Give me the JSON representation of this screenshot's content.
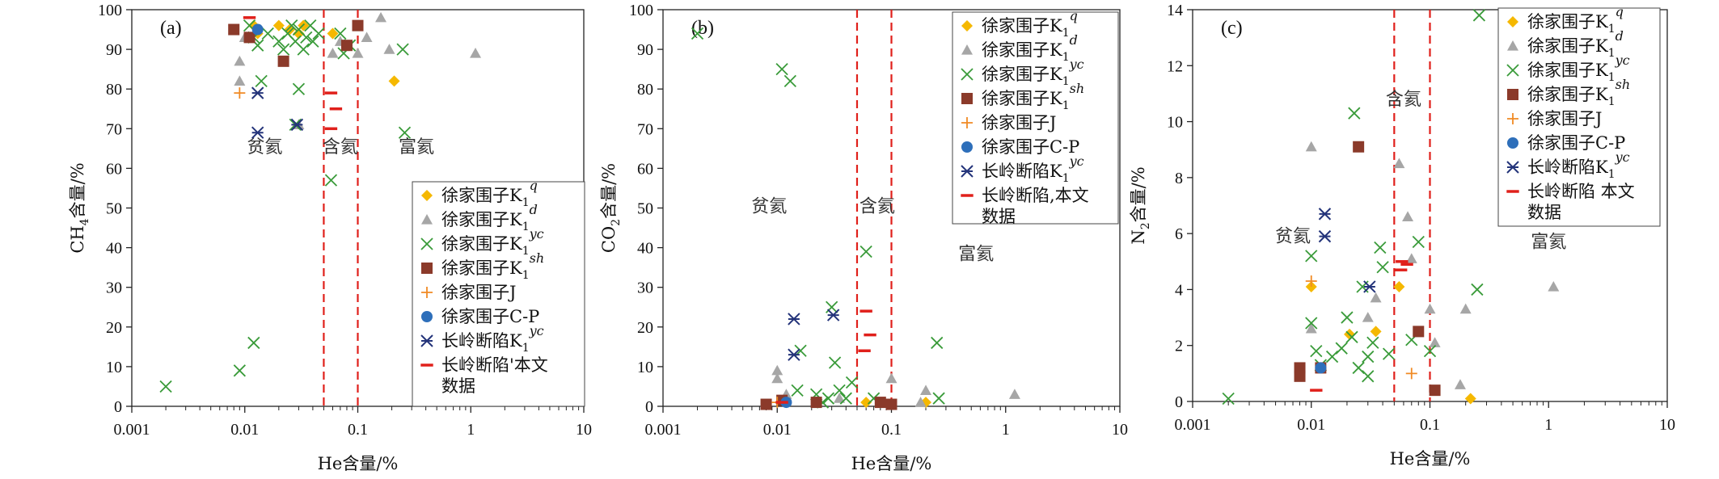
{
  "figure": {
    "styles": {
      "xq": {
        "color": "#f5b800",
        "marker": "diamond"
      },
      "xd": {
        "color": "#a6a6a6",
        "marker": "triangle"
      },
      "xyc": {
        "color": "#3a9b3a",
        "marker": "x"
      },
      "xsh": {
        "color": "#8b3a2a",
        "marker": "square"
      },
      "xj": {
        "color": "#f08a24",
        "marker": "plus"
      },
      "xcp": {
        "color": "#2e6fba",
        "marker": "circle"
      },
      "cl": {
        "color": "#24347a",
        "marker": "star"
      },
      "ours": {
        "color": "#e0201b",
        "marker": "dash"
      }
    },
    "boundary_color": "#e0201b"
  },
  "chart_data": [
    {
      "panel": "(a)",
      "type": "scatter",
      "xlabel": "He含量/%",
      "ylabel": "CH4含量/%",
      "ylabel_main": "CH",
      "ylabel_sub": "4",
      "ylabel_tail": "含量/%",
      "xscale": "log",
      "xlim": [
        0.001,
        10
      ],
      "ylim": [
        0,
        100
      ],
      "xticks": [
        "0.001",
        "0.01",
        "0.1",
        "1",
        "10"
      ],
      "yticks": [
        "0",
        "10",
        "20",
        "30",
        "40",
        "50",
        "60",
        "70",
        "80",
        "90",
        "100"
      ],
      "boundaries": [
        0.05,
        0.1
      ],
      "zones": [
        {
          "label": "贫氦",
          "x": 0.015,
          "y": 64
        },
        {
          "label": "含氦",
          "x": 0.07,
          "y": 64
        },
        {
          "label": "富氦",
          "x": 0.33,
          "y": 64
        }
      ],
      "legend": [
        {
          "key": "xq",
          "text": "徐家围子K",
          "sub": "1",
          "sup": "q"
        },
        {
          "key": "xd",
          "text": "徐家围子K",
          "sub": "1",
          "sup": "d"
        },
        {
          "key": "xyc",
          "text": "徐家围子K",
          "sub": "1",
          "sup": "yc"
        },
        {
          "key": "xsh",
          "text": "徐家围子K",
          "sub": "1",
          "sup": "sh"
        },
        {
          "key": "xj",
          "text": "徐家围子J",
          "sub": "",
          "sup": ""
        },
        {
          "key": "xcp",
          "text": "徐家围子C-P",
          "sub": "",
          "sup": ""
        },
        {
          "key": "cl",
          "text": "长岭断陷K",
          "sub": "1",
          "sup": "yc"
        },
        {
          "key": "ours",
          "text": "长岭断陷'本文",
          "sub": "",
          "sup": "",
          "line2": "数据"
        }
      ],
      "series": [
        {
          "key": "xq",
          "points": [
            [
              0.012,
              96
            ],
            [
              0.013,
              94
            ],
            [
              0.02,
              96
            ],
            [
              0.025,
              95
            ],
            [
              0.03,
              94
            ],
            [
              0.033,
              96
            ],
            [
              0.06,
              94
            ],
            [
              0.21,
              82
            ]
          ]
        },
        {
          "key": "xd",
          "points": [
            [
              0.009,
              82
            ],
            [
              0.009,
              87
            ],
            [
              0.01,
              93
            ],
            [
              0.03,
              71
            ],
            [
              0.06,
              89
            ],
            [
              0.07,
              92
            ],
            [
              0.1,
              89
            ],
            [
              0.12,
              93
            ],
            [
              0.16,
              98
            ],
            [
              0.19,
              90
            ],
            [
              1.1,
              89
            ]
          ]
        },
        {
          "key": "xyc",
          "points": [
            [
              0.002,
              5
            ],
            [
              0.009,
              9
            ],
            [
              0.011,
              96
            ],
            [
              0.012,
              16
            ],
            [
              0.012,
              93
            ],
            [
              0.013,
              91
            ],
            [
              0.014,
              82
            ],
            [
              0.016,
              94
            ],
            [
              0.02,
              92
            ],
            [
              0.022,
              90
            ],
            [
              0.024,
              94
            ],
            [
              0.026,
              96
            ],
            [
              0.028,
              92
            ],
            [
              0.028,
              71
            ],
            [
              0.03,
              80
            ],
            [
              0.03,
              95
            ],
            [
              0.033,
              90
            ],
            [
              0.035,
              93
            ],
            [
              0.038,
              96
            ],
            [
              0.04,
              92
            ],
            [
              0.045,
              94
            ],
            [
              0.058,
              57
            ],
            [
              0.07,
              94
            ],
            [
              0.075,
              89
            ],
            [
              0.085,
              91
            ],
            [
              0.25,
              90
            ],
            [
              0.26,
              69
            ]
          ]
        },
        {
          "key": "xsh",
          "points": [
            [
              0.008,
              95
            ],
            [
              0.011,
              93
            ],
            [
              0.022,
              87
            ],
            [
              0.08,
              91
            ],
            [
              0.1,
              96
            ]
          ]
        },
        {
          "key": "xj",
          "points": [
            [
              0.009,
              79
            ]
          ]
        },
        {
          "key": "xcp",
          "points": [
            [
              0.013,
              95
            ]
          ]
        },
        {
          "key": "cl",
          "points": [
            [
              0.013,
              79
            ],
            [
              0.013,
              69
            ],
            [
              0.029,
              71
            ]
          ]
        },
        {
          "key": "ours",
          "points": [
            [
              0.011,
              98
            ],
            [
              0.058,
              79
            ],
            [
              0.064,
              75
            ],
            [
              0.058,
              70
            ]
          ]
        }
      ]
    },
    {
      "panel": "(b)",
      "type": "scatter",
      "xlabel": "He含量/%",
      "ylabel": "CO2含量/%",
      "ylabel_main": "CO",
      "ylabel_sub": "2",
      "ylabel_tail": "含量/%",
      "xscale": "log",
      "xlim": [
        0.001,
        10
      ],
      "ylim": [
        0,
        100
      ],
      "xticks": [
        "0.001",
        "0.01",
        "0.1",
        "1",
        "10"
      ],
      "yticks": [
        "0",
        "10",
        "20",
        "30",
        "40",
        "50",
        "60",
        "70",
        "80",
        "90",
        "100"
      ],
      "boundaries": [
        0.05,
        0.1
      ],
      "zones": [
        {
          "label": "贫氦",
          "x": 0.0085,
          "y": 49
        },
        {
          "label": "含氦",
          "x": 0.075,
          "y": 49
        },
        {
          "label": "富氦",
          "x": 0.55,
          "y": 37
        }
      ],
      "legend": [
        {
          "key": "xq",
          "text": "徐家围子K",
          "sub": "1",
          "sup": "q"
        },
        {
          "key": "xd",
          "text": "徐家围子K",
          "sub": "1",
          "sup": "d"
        },
        {
          "key": "xyc",
          "text": "徐家围子K",
          "sub": "1",
          "sup": "yc"
        },
        {
          "key": "xsh",
          "text": "徐家围子K",
          "sub": "1",
          "sup": "sh"
        },
        {
          "key": "xj",
          "text": "徐家围子J",
          "sub": "",
          "sup": ""
        },
        {
          "key": "xcp",
          "text": "徐家围子C-P",
          "sub": "",
          "sup": ""
        },
        {
          "key": "cl",
          "text": "长岭断陷K",
          "sub": "1",
          "sup": "yc"
        },
        {
          "key": "ours",
          "text": "长岭断陷,本文",
          "sub": "",
          "sup": "",
          "line2": "数据"
        }
      ],
      "series": [
        {
          "key": "xq",
          "points": [
            [
              0.06,
              1
            ],
            [
              0.2,
              1
            ]
          ]
        },
        {
          "key": "xd",
          "points": [
            [
              0.01,
              9
            ],
            [
              0.01,
              7
            ],
            [
              0.012,
              3
            ],
            [
              0.035,
              2
            ],
            [
              0.1,
              7
            ],
            [
              0.18,
              1
            ],
            [
              0.2,
              4
            ],
            [
              1.2,
              3
            ]
          ]
        },
        {
          "key": "xyc",
          "points": [
            [
              0.002,
              94
            ],
            [
              0.011,
              85
            ],
            [
              0.013,
              82
            ],
            [
              0.016,
              14
            ],
            [
              0.015,
              4
            ],
            [
              0.022,
              3
            ],
            [
              0.025,
              1
            ],
            [
              0.028,
              2
            ],
            [
              0.03,
              25
            ],
            [
              0.032,
              11
            ],
            [
              0.035,
              4
            ],
            [
              0.04,
              2
            ],
            [
              0.045,
              6
            ],
            [
              0.06,
              39
            ],
            [
              0.07,
              2
            ],
            [
              0.25,
              16
            ],
            [
              0.26,
              2
            ]
          ]
        },
        {
          "key": "xsh",
          "points": [
            [
              0.008,
              0.5
            ],
            [
              0.011,
              1.5
            ],
            [
              0.022,
              1
            ],
            [
              0.08,
              1
            ],
            [
              0.1,
              0.5
            ]
          ]
        },
        {
          "key": "xj",
          "points": [
            [
              0.01,
              1
            ]
          ]
        },
        {
          "key": "xcp",
          "points": [
            [
              0.012,
              1
            ]
          ]
        },
        {
          "key": "cl",
          "points": [
            [
              0.014,
              22
            ],
            [
              0.014,
              13
            ],
            [
              0.031,
              23
            ]
          ]
        },
        {
          "key": "ours",
          "points": [
            [
              0.011,
              1
            ],
            [
              0.06,
              24
            ],
            [
              0.065,
              18
            ],
            [
              0.058,
              14
            ]
          ]
        }
      ]
    },
    {
      "panel": "(c)",
      "type": "scatter",
      "xlabel": "He含量/%",
      "ylabel": "N2含量/%",
      "ylabel_main": "N",
      "ylabel_sub": "2",
      "ylabel_tail": "含量/%",
      "xscale": "log",
      "xlim": [
        0.001,
        10
      ],
      "ylim": [
        0,
        14
      ],
      "xticks": [
        "0.001",
        "0.01",
        "0.1",
        "1",
        "10"
      ],
      "yticks": [
        "0",
        "2",
        "4",
        "6",
        "8",
        "10",
        "12",
        "14"
      ],
      "boundaries": [
        0.05,
        0.1
      ],
      "zones": [
        {
          "label": "贫氦",
          "x": 0.007,
          "y": 5.7
        },
        {
          "label": "含氦",
          "x": 0.06,
          "y": 10.6
        },
        {
          "label": "富氦",
          "x": 1.0,
          "y": 5.5
        }
      ],
      "legend": [
        {
          "key": "xq",
          "text": "徐家围子K",
          "sub": "1",
          "sup": "q"
        },
        {
          "key": "xd",
          "text": "徐家围子K",
          "sub": "1",
          "sup": "d"
        },
        {
          "key": "xyc",
          "text": "徐家围子K",
          "sub": "1",
          "sup": "yc"
        },
        {
          "key": "xsh",
          "text": "徐家围子K",
          "sub": "1",
          "sup": "sh"
        },
        {
          "key": "xj",
          "text": "徐家围子J",
          "sub": "",
          "sup": ""
        },
        {
          "key": "xcp",
          "text": "徐家围子C-P",
          "sub": "",
          "sup": ""
        },
        {
          "key": "cl",
          "text": "长岭断陷K",
          "sub": "1",
          "sup": "yc"
        },
        {
          "key": "ours",
          "text": "长岭断陷 本文",
          "sub": "",
          "sup": "",
          "line2": "数据"
        }
      ],
      "series": [
        {
          "key": "xq",
          "points": [
            [
              0.01,
              4.1
            ],
            [
              0.021,
              2.4
            ],
            [
              0.035,
              2.5
            ],
            [
              0.055,
              4.1
            ],
            [
              0.22,
              0.1
            ]
          ]
        },
        {
          "key": "xd",
          "points": [
            [
              0.01,
              9.1
            ],
            [
              0.01,
              2.6
            ],
            [
              0.03,
              3
            ],
            [
              0.035,
              3.7
            ],
            [
              0.055,
              8.5
            ],
            [
              0.065,
              6.6
            ],
            [
              0.07,
              5.1
            ],
            [
              0.1,
              3.3
            ],
            [
              0.11,
              2.1
            ],
            [
              0.18,
              0.6
            ],
            [
              0.2,
              3.3
            ],
            [
              1.1,
              4.1
            ]
          ]
        },
        {
          "key": "xyc",
          "points": [
            [
              0.002,
              0.1
            ],
            [
              0.01,
              5.2
            ],
            [
              0.01,
              2.8
            ],
            [
              0.011,
              1.8
            ],
            [
              0.012,
              1.3
            ],
            [
              0.015,
              1.6
            ],
            [
              0.018,
              1.9
            ],
            [
              0.02,
              3
            ],
            [
              0.022,
              2.3
            ],
            [
              0.023,
              10.3
            ],
            [
              0.025,
              1.2
            ],
            [
              0.027,
              4.1
            ],
            [
              0.03,
              1.6
            ],
            [
              0.03,
              0.9
            ],
            [
              0.033,
              2.1
            ],
            [
              0.038,
              5.5
            ],
            [
              0.04,
              4.8
            ],
            [
              0.045,
              1.7
            ],
            [
              0.07,
              2.2
            ],
            [
              0.08,
              5.7
            ],
            [
              0.1,
              1.8
            ],
            [
              0.25,
              4
            ],
            [
              0.26,
              13.8
            ]
          ]
        },
        {
          "key": "xsh",
          "points": [
            [
              0.008,
              1.2
            ],
            [
              0.008,
              0.9
            ],
            [
              0.012,
              1.2
            ],
            [
              0.025,
              9.1
            ],
            [
              0.08,
              2.5
            ],
            [
              0.11,
              0.4
            ]
          ]
        },
        {
          "key": "xj",
          "points": [
            [
              0.01,
              4.3
            ],
            [
              0.07,
              1
            ]
          ]
        },
        {
          "key": "xcp",
          "points": [
            [
              0.012,
              1.2
            ]
          ]
        },
        {
          "key": "cl",
          "points": [
            [
              0.013,
              6.7
            ],
            [
              0.013,
              5.9
            ],
            [
              0.031,
              4.1
            ]
          ]
        },
        {
          "key": "ours",
          "points": [
            [
              0.011,
              0.4
            ],
            [
              0.058,
              5
            ],
            [
              0.064,
              4.9
            ],
            [
              0.057,
              4.7
            ]
          ]
        }
      ]
    }
  ]
}
